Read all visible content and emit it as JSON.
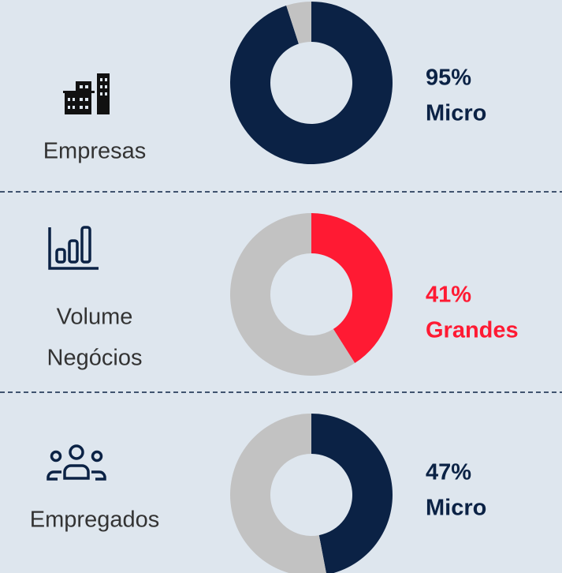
{
  "chart_data": [
    {
      "type": "pie",
      "label": [
        "Empresas"
      ],
      "categories": [
        "Micro",
        null
      ],
      "values": [
        95,
        5
      ],
      "value_labels": [
        "95%",
        null
      ],
      "colors": [
        "#0b2245",
        "#c2c2c2"
      ],
      "text_color": "#0b2245"
    },
    {
      "type": "pie",
      "label": [
        "Volume",
        "Negócios"
      ],
      "categories": [
        "Grandes",
        null
      ],
      "values": [
        41,
        59
      ],
      "value_labels": [
        "41%",
        null
      ],
      "colors": [
        "#ff1a33",
        "#c2c2c2"
      ],
      "text_color": "#ff1a33"
    },
    {
      "type": "pie",
      "label": [
        "Empregados"
      ],
      "categories": [
        "Micro",
        null
      ],
      "values": [
        47,
        53
      ],
      "value_labels": [
        "47%",
        null
      ],
      "colors": [
        "#0b2245",
        "#c2c2c2"
      ],
      "text_color": "#0b2245"
    }
  ]
}
